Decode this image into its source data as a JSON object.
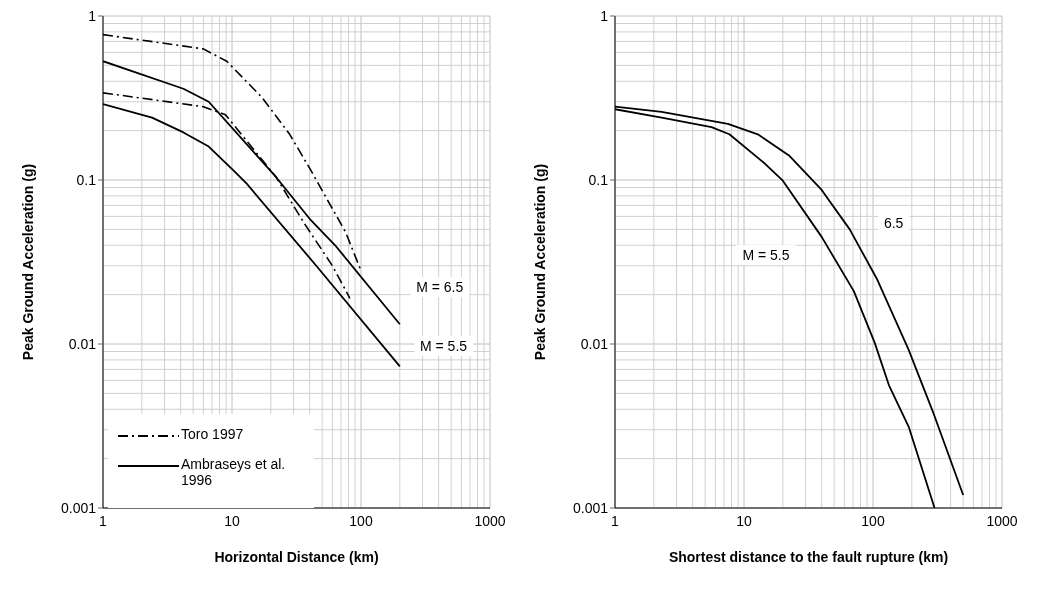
{
  "chart_data": [
    {
      "type": "line",
      "xlabel": "Horizontal Distance (km)",
      "ylabel": "Peak Ground Acceleration (g)",
      "log": "xy",
      "grid": true,
      "legend": "bottom left",
      "xlim": [
        1,
        1000
      ],
      "ylim": [
        0.001,
        1
      ],
      "xticks": [
        1,
        10,
        100,
        1000
      ],
      "yticks": [
        0.001,
        0.01,
        0.1,
        1
      ],
      "series": [
        {
          "name": "Toro 1997",
          "color": "#000000",
          "line_style": "dashed",
          "x": [
            1,
            6,
            9.1,
            17,
            28,
            41,
            76,
            100
          ],
          "values": [
            0.77,
            0.63,
            0.53,
            0.32,
            0.19,
            0.114,
            0.048,
            0.028
          ]
        },
        {
          "color": "#000000",
          "line_style": "dashed",
          "x": [
            1,
            6,
            8.9,
            22,
            36,
            60,
            82
          ],
          "values": [
            0.34,
            0.28,
            0.25,
            0.104,
            0.055,
            0.03,
            0.019
          ]
        },
        {
          "name": "Ambraseys et al. 1996",
          "color": "#000000",
          "line_style": "solid",
          "x": [
            1,
            4.2,
            6.6,
            22,
            40,
            63,
            200
          ],
          "values": [
            0.53,
            0.36,
            0.3,
            0.104,
            0.058,
            0.04,
            0.0132
          ]
        },
        {
          "color": "#000000",
          "line_style": "solid",
          "x": [
            1,
            2.4,
            4.2,
            6.6,
            10.3,
            13,
            45,
            200
          ],
          "values": [
            0.29,
            0.24,
            0.195,
            0.16,
            0.114,
            0.095,
            0.03,
            0.0073
          ]
        }
      ],
      "annotations": [
        "M = 6.5",
        "M = 5.5"
      ]
    },
    {
      "type": "line",
      "xlabel": "Shortest distance to the fault rupture (km)",
      "ylabel": "Peak Ground Acceleration (g)",
      "log": "xy",
      "grid": true,
      "legend": false,
      "xlim": [
        1,
        1000
      ],
      "ylim": [
        0.001,
        1
      ],
      "xticks": [
        1,
        10,
        100,
        1000
      ],
      "yticks": [
        0.001,
        0.01,
        0.1,
        1
      ],
      "series": [
        {
          "color": "#000000",
          "line_style": "solid",
          "x": [
            1,
            2.3,
            7.5,
            12.8,
            22.6,
            40,
            66,
            107,
            188,
            290,
            500
          ],
          "values": [
            0.28,
            0.26,
            0.22,
            0.19,
            0.14,
            0.087,
            0.05,
            0.025,
            0.0093,
            0.0039,
            0.0012
          ]
        },
        {
          "color": "#000000",
          "line_style": "solid",
          "x": [
            1,
            2.3,
            5.6,
            7.7,
            14.5,
            20,
            40,
            71,
            103,
            133,
            190,
            300
          ],
          "values": [
            0.27,
            0.24,
            0.21,
            0.19,
            0.126,
            0.099,
            0.045,
            0.021,
            0.0102,
            0.0056,
            0.0031,
            0.001
          ]
        }
      ],
      "annotations": [
        "M = 5.5",
        "6.5"
      ]
    }
  ]
}
